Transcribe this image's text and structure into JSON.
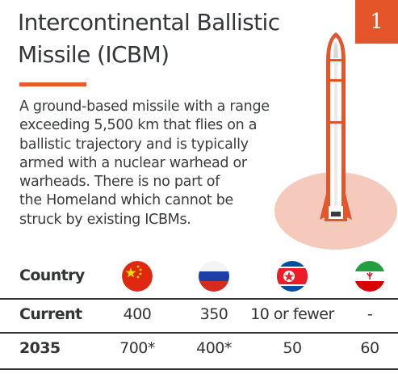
{
  "card": {
    "number": "1",
    "title_line1": "Intercontinental Ballistic",
    "title_line2": "Missile (ICBM)",
    "description_lines": [
      "A ground-based missile with a range",
      "exceeding 5,500 km that flies on a",
      "ballistic trajectory and is typically",
      "armed with a nuclear warhead or",
      "warheads. There is no part of",
      "the Homeland which cannot be",
      "struck by existing ICBMs."
    ]
  },
  "table": {
    "header_label": "Country",
    "countries": [
      {
        "flag": "china-flag-icon"
      },
      {
        "flag": "russia-flag-icon"
      },
      {
        "flag": "north-korea-flag-icon"
      },
      {
        "flag": "iran-flag-icon"
      }
    ],
    "rows": [
      {
        "label": "Current",
        "values": [
          "400",
          "350",
          "10 or fewer",
          "-"
        ]
      },
      {
        "label": "2035",
        "values": [
          "700*",
          "400*",
          "50",
          "60"
        ]
      }
    ]
  },
  "colors": {
    "accent": "#e4552a",
    "blast": "#f6c9bd",
    "text": "#333436"
  }
}
